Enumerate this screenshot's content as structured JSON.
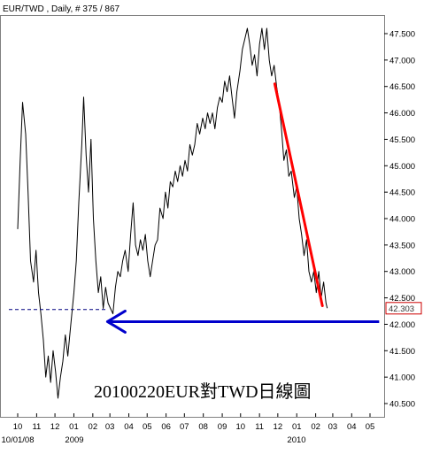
{
  "header": {
    "title": "EUR/TWD , Daily, # 375 / 867"
  },
  "annotation": "20100220EUR對TWD日線圖",
  "chart_data": {
    "type": "line",
    "title": "EUR/TWD , Daily, # 375 / 867",
    "xlabel": "",
    "ylabel": "",
    "ylim": [
      40.3,
      47.9
    ],
    "y_ticks": [
      "40.500",
      "41.000",
      "41.500",
      "42.000",
      "42.500",
      "43.000",
      "43.500",
      "44.000",
      "44.500",
      "45.000",
      "45.500",
      "46.000",
      "46.500",
      "47.000",
      "47.500"
    ],
    "x_ticks": [
      "10",
      "11",
      "12",
      "01",
      "02",
      "03",
      "04",
      "05",
      "06",
      "07",
      "08",
      "09",
      "10",
      "11",
      "12",
      "01",
      "02",
      "03",
      "04",
      "05"
    ],
    "x_sublabels": [
      "10/01/08",
      "2009",
      "2010"
    ],
    "last_value": "42.303",
    "grid": false,
    "series": [
      {
        "style": "close-line",
        "color": "#000000",
        "points": [
          [
            "2008-10-01",
            43.8
          ],
          [
            "2008-10-05",
            45.1
          ],
          [
            "2008-10-09",
            46.2
          ],
          [
            "2008-10-14",
            45.6
          ],
          [
            "2008-10-18",
            44.5
          ],
          [
            "2008-10-22",
            43.2
          ],
          [
            "2008-10-27",
            42.8
          ],
          [
            "2008-10-31",
            43.4
          ],
          [
            "2008-11-04",
            42.6
          ],
          [
            "2008-11-08",
            42.2
          ],
          [
            "2008-11-12",
            41.7
          ],
          [
            "2008-11-16",
            41.0
          ],
          [
            "2008-11-20",
            41.4
          ],
          [
            "2008-11-24",
            40.9
          ],
          [
            "2008-11-28",
            41.5
          ],
          [
            "2008-12-02",
            41.1
          ],
          [
            "2008-12-06",
            40.6
          ],
          [
            "2008-12-10",
            41.0
          ],
          [
            "2008-12-14",
            41.3
          ],
          [
            "2008-12-18",
            41.8
          ],
          [
            "2008-12-22",
            41.4
          ],
          [
            "2008-12-27",
            42.0
          ],
          [
            "2009-01-01",
            42.6
          ],
          [
            "2009-01-05",
            43.2
          ],
          [
            "2009-01-09",
            44.3
          ],
          [
            "2009-01-14",
            45.4
          ],
          [
            "2009-01-17",
            46.3
          ],
          [
            "2009-01-21",
            45.2
          ],
          [
            "2009-01-25",
            44.5
          ],
          [
            "2009-01-29",
            45.5
          ],
          [
            "2009-02-02",
            44.0
          ],
          [
            "2009-02-06",
            43.2
          ],
          [
            "2009-02-10",
            42.6
          ],
          [
            "2009-02-14",
            42.9
          ],
          [
            "2009-02-18",
            42.3
          ],
          [
            "2009-02-22",
            42.7
          ],
          [
            "2009-02-26",
            42.4
          ],
          [
            "2009-03-02",
            42.3
          ],
          [
            "2009-03-06",
            42.2
          ],
          [
            "2009-03-10",
            42.7
          ],
          [
            "2009-03-14",
            43.0
          ],
          [
            "2009-03-18",
            42.9
          ],
          [
            "2009-03-22",
            43.2
          ],
          [
            "2009-03-26",
            43.4
          ],
          [
            "2009-03-31",
            43.0
          ],
          [
            "2009-04-04",
            43.7
          ],
          [
            "2009-04-08",
            44.3
          ],
          [
            "2009-04-12",
            43.5
          ],
          [
            "2009-04-16",
            43.3
          ],
          [
            "2009-04-20",
            43.6
          ],
          [
            "2009-04-24",
            43.4
          ],
          [
            "2009-04-28",
            43.7
          ],
          [
            "2009-05-02",
            43.2
          ],
          [
            "2009-05-06",
            42.9
          ],
          [
            "2009-05-10",
            43.2
          ],
          [
            "2009-05-14",
            43.5
          ],
          [
            "2009-05-18",
            43.6
          ],
          [
            "2009-05-22",
            44.2
          ],
          [
            "2009-05-27",
            44.0
          ],
          [
            "2009-05-31",
            44.5
          ],
          [
            "2009-06-04",
            44.2
          ],
          [
            "2009-06-08",
            44.7
          ],
          [
            "2009-06-12",
            44.6
          ],
          [
            "2009-06-16",
            44.9
          ],
          [
            "2009-06-20",
            44.7
          ],
          [
            "2009-06-24",
            45.0
          ],
          [
            "2009-06-28",
            44.8
          ],
          [
            "2009-07-02",
            45.1
          ],
          [
            "2009-07-06",
            44.9
          ],
          [
            "2009-07-10",
            45.4
          ],
          [
            "2009-07-14",
            45.2
          ],
          [
            "2009-07-18",
            45.4
          ],
          [
            "2009-07-22",
            45.8
          ],
          [
            "2009-07-26",
            45.6
          ],
          [
            "2009-07-31",
            45.9
          ],
          [
            "2009-08-04",
            45.7
          ],
          [
            "2009-08-08",
            46.0
          ],
          [
            "2009-08-12",
            45.8
          ],
          [
            "2009-08-16",
            46.0
          ],
          [
            "2009-08-20",
            45.7
          ],
          [
            "2009-08-24",
            46.1
          ],
          [
            "2009-08-28",
            46.3
          ],
          [
            "2009-09-01",
            46.2
          ],
          [
            "2009-09-05",
            46.6
          ],
          [
            "2009-09-09",
            46.4
          ],
          [
            "2009-09-13",
            46.7
          ],
          [
            "2009-09-17",
            46.3
          ],
          [
            "2009-09-21",
            45.9
          ],
          [
            "2009-09-25",
            46.4
          ],
          [
            "2009-09-30",
            46.8
          ],
          [
            "2009-10-04",
            47.2
          ],
          [
            "2009-10-08",
            47.4
          ],
          [
            "2009-10-12",
            47.6
          ],
          [
            "2009-10-16",
            47.3
          ],
          [
            "2009-10-20",
            46.9
          ],
          [
            "2009-10-24",
            47.1
          ],
          [
            "2009-10-28",
            46.7
          ],
          [
            "2009-11-01",
            47.3
          ],
          [
            "2009-11-05",
            47.6
          ],
          [
            "2009-11-09",
            47.2
          ],
          [
            "2009-11-13",
            47.6
          ],
          [
            "2009-11-17",
            47.0
          ],
          [
            "2009-11-21",
            46.7
          ],
          [
            "2009-11-25",
            46.9
          ],
          [
            "2009-11-29",
            46.5
          ],
          [
            "2009-12-03",
            46.2
          ],
          [
            "2009-12-07",
            45.7
          ],
          [
            "2009-12-11",
            45.1
          ],
          [
            "2009-12-15",
            45.3
          ],
          [
            "2009-12-19",
            44.8
          ],
          [
            "2009-12-23",
            44.9
          ],
          [
            "2009-12-28",
            44.4
          ],
          [
            "2010-01-01",
            44.6
          ],
          [
            "2010-01-05",
            44.0
          ],
          [
            "2010-01-09",
            43.7
          ],
          [
            "2010-01-13",
            43.3
          ],
          [
            "2010-01-17",
            43.6
          ],
          [
            "2010-01-21",
            43.0
          ],
          [
            "2010-01-25",
            42.8
          ],
          [
            "2010-01-29",
            43.0
          ],
          [
            "2010-02-02",
            42.6
          ],
          [
            "2010-02-06",
            43.0
          ],
          [
            "2010-02-10",
            42.5
          ],
          [
            "2010-02-14",
            42.8
          ],
          [
            "2010-02-18",
            42.4
          ],
          [
            "2010-02-20",
            42.303
          ]
        ]
      },
      {
        "style": "trend-line",
        "color": "#ff0000",
        "points": [
          [
            "2009-11-26",
            46.55
          ],
          [
            "2010-02-12",
            42.35
          ]
        ]
      },
      {
        "style": "dashed-level",
        "color": "#000080",
        "points": [
          [
            "2008-10-01",
            42.28
          ],
          [
            "2009-02-22",
            42.28
          ]
        ]
      },
      {
        "style": "arrow",
        "color": "#0000cc",
        "points": [
          [
            "2010-05-16",
            42.05
          ],
          [
            "2009-02-25",
            42.05
          ]
        ]
      }
    ]
  }
}
